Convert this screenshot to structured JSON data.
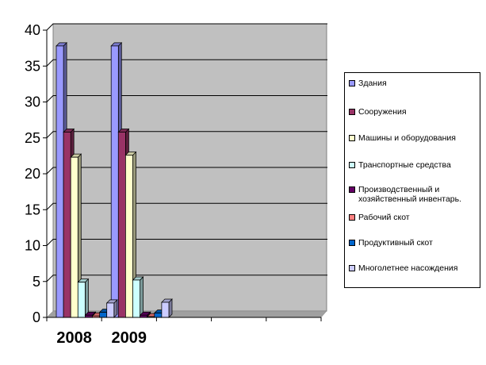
{
  "chart_data": {
    "type": "bar",
    "categories": [
      "2008",
      "2009",
      "",
      "",
      ""
    ],
    "ylim": [
      0,
      40
    ],
    "yticks": [
      0,
      5,
      10,
      15,
      20,
      25,
      30,
      35,
      40
    ],
    "grid": true,
    "legend_position": "right",
    "series": [
      {
        "name": "Здания",
        "color": "#9999FF",
        "values": [
          37.8,
          37.8,
          null,
          null,
          null
        ]
      },
      {
        "name": "Сооружения",
        "color": "#993366",
        "values": [
          25.8,
          25.8,
          null,
          null,
          null
        ]
      },
      {
        "name": "Машины и оборудования",
        "color": "#FFFFCC",
        "values": [
          22.3,
          22.6,
          null,
          null,
          null
        ]
      },
      {
        "name": "Транспортные средства",
        "color": "#CCFFFF",
        "values": [
          4.9,
          5.2,
          null,
          null,
          null
        ]
      },
      {
        "name": "Производственный и хозяйственный инвентарь.",
        "color": "#660066",
        "values": [
          0.3,
          0.3,
          null,
          null,
          null
        ]
      },
      {
        "name": "Рабочий скот",
        "color": "#FF8080",
        "values": [
          0.2,
          0.1,
          null,
          null,
          null
        ]
      },
      {
        "name": "Продуктивный скот",
        "color": "#0066CC",
        "values": [
          0.7,
          0.6,
          null,
          null,
          null
        ]
      },
      {
        "name": "Многолетнее насождения",
        "color": "#CCCCFF",
        "values": [
          2.0,
          2.1,
          null,
          null,
          null
        ]
      }
    ]
  }
}
